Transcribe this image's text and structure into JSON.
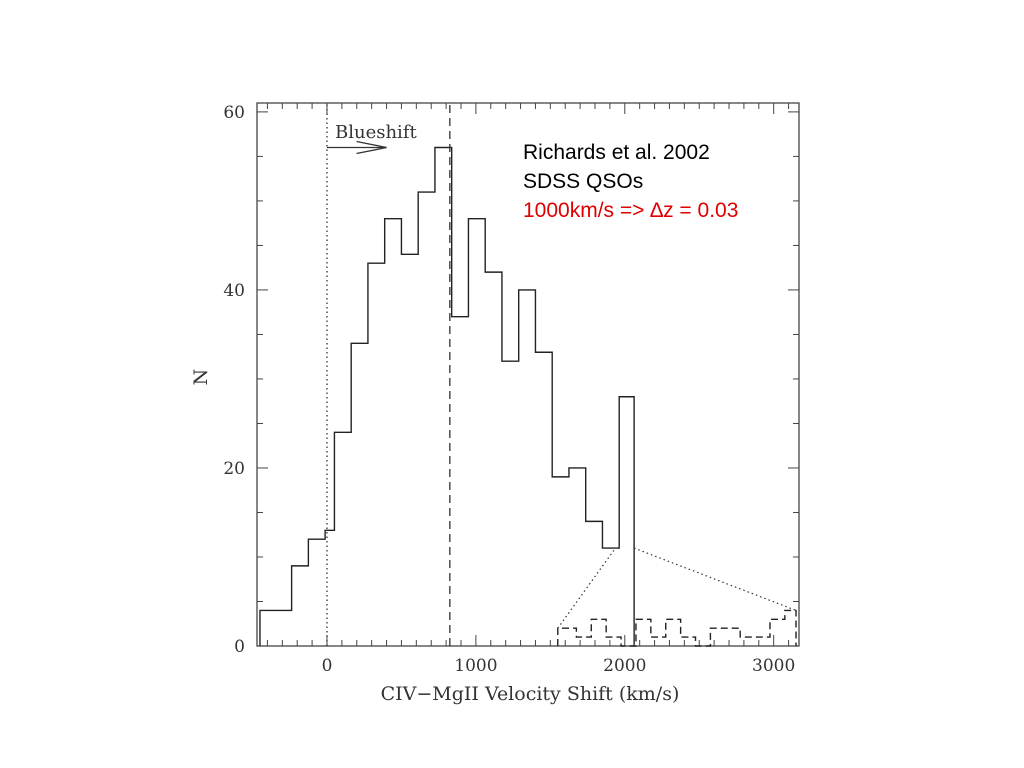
{
  "chart_data": {
    "type": "histogram",
    "xlabel": "CIV−MgII Velocity Shift (km/s)",
    "ylabel": "N",
    "xlim": [
      -470,
      3170
    ],
    "ylim": [
      0,
      61
    ],
    "x_ticks": [
      0,
      1000,
      2000,
      3000
    ],
    "x_tick_labels": [
      "0",
      "1000",
      "2000",
      "3000"
    ],
    "y_ticks": [
      0,
      20,
      40,
      60
    ],
    "y_tick_labels": [
      "0",
      "20",
      "40",
      "60"
    ],
    "bin_width": 112.5,
    "series": [
      {
        "style": "solid",
        "bin_edges": [
          -450,
          -237.5,
          -125,
          -12.5,
          50,
          162.5,
          275,
          387.5,
          500,
          612.5,
          725,
          837.5,
          950,
          1062.5,
          1175,
          1287.5,
          1400,
          1512.5,
          1625,
          1737.5,
          1850,
          1962.5,
          2062.5
        ],
        "counts": [
          4,
          9,
          12,
          13,
          24,
          34,
          43,
          48,
          44,
          51,
          56,
          37,
          48,
          42,
          32,
          40,
          33,
          19,
          20,
          14,
          11,
          28
        ]
      },
      {
        "style": "dashed",
        "bin_edges": [
          1550,
          1675,
          1775,
          1875,
          1975,
          2075,
          2175,
          2275,
          2375,
          2475,
          2575,
          2675,
          2775,
          2875,
          2975,
          3075,
          3150
        ],
        "counts": [
          2,
          1,
          3,
          1,
          0,
          3,
          1,
          3,
          1,
          0,
          2,
          2,
          1,
          1,
          3,
          4
        ]
      }
    ],
    "reference_lines": [
      {
        "x": 0,
        "style": "dotted"
      },
      {
        "x": 825,
        "style": "dashed"
      },
      {
        "x": 2062.5,
        "style": "solid"
      }
    ],
    "inset_lines": [
      {
        "points": [
          [
            1550,
            2
          ],
          [
            1937.5,
            11
          ]
        ],
        "style": "dotted"
      },
      {
        "points": [
          [
            2062.5,
            11
          ],
          [
            3150,
            4
          ]
        ],
        "style": "dotted"
      }
    ],
    "arrow": {
      "label": "Blueshift",
      "from": [
        0,
        56
      ],
      "to": [
        400,
        56
      ]
    },
    "annotations": [
      "Richards et al. 2002",
      "SDSS QSOs",
      "1000km/s => ∆z = 0.03"
    ],
    "colors": {
      "axis": "#000000",
      "annotation_highlight": "#e00000"
    }
  }
}
